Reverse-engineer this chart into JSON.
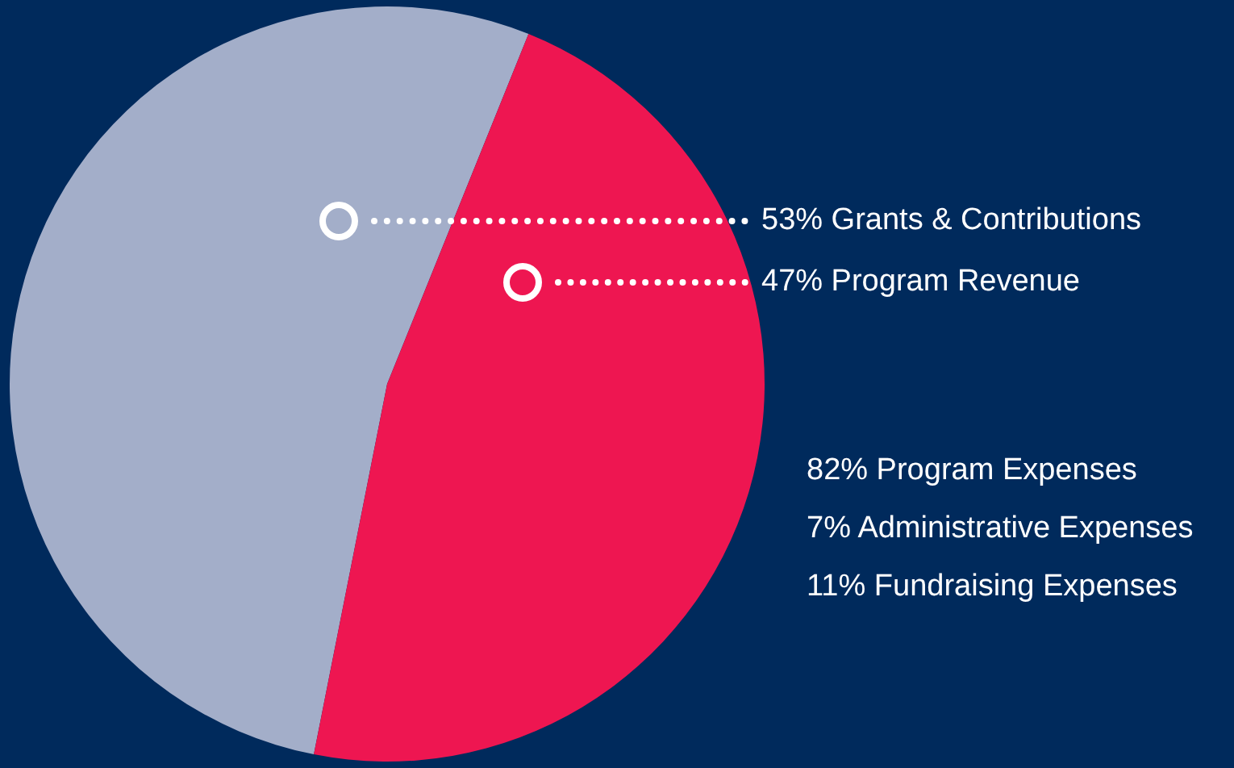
{
  "chart_data": {
    "type": "pie",
    "categories": [
      "Grants & Contributions",
      "Program Revenue"
    ],
    "values": [
      53,
      47
    ],
    "value_labels": [
      "53%",
      "47%"
    ],
    "colors": [
      "#a3aec9",
      "#ee1651"
    ],
    "annotations": [
      "82% Program Expenses",
      "7% Administrative Expenses",
      "11% Fundraising Expenses"
    ]
  }
}
